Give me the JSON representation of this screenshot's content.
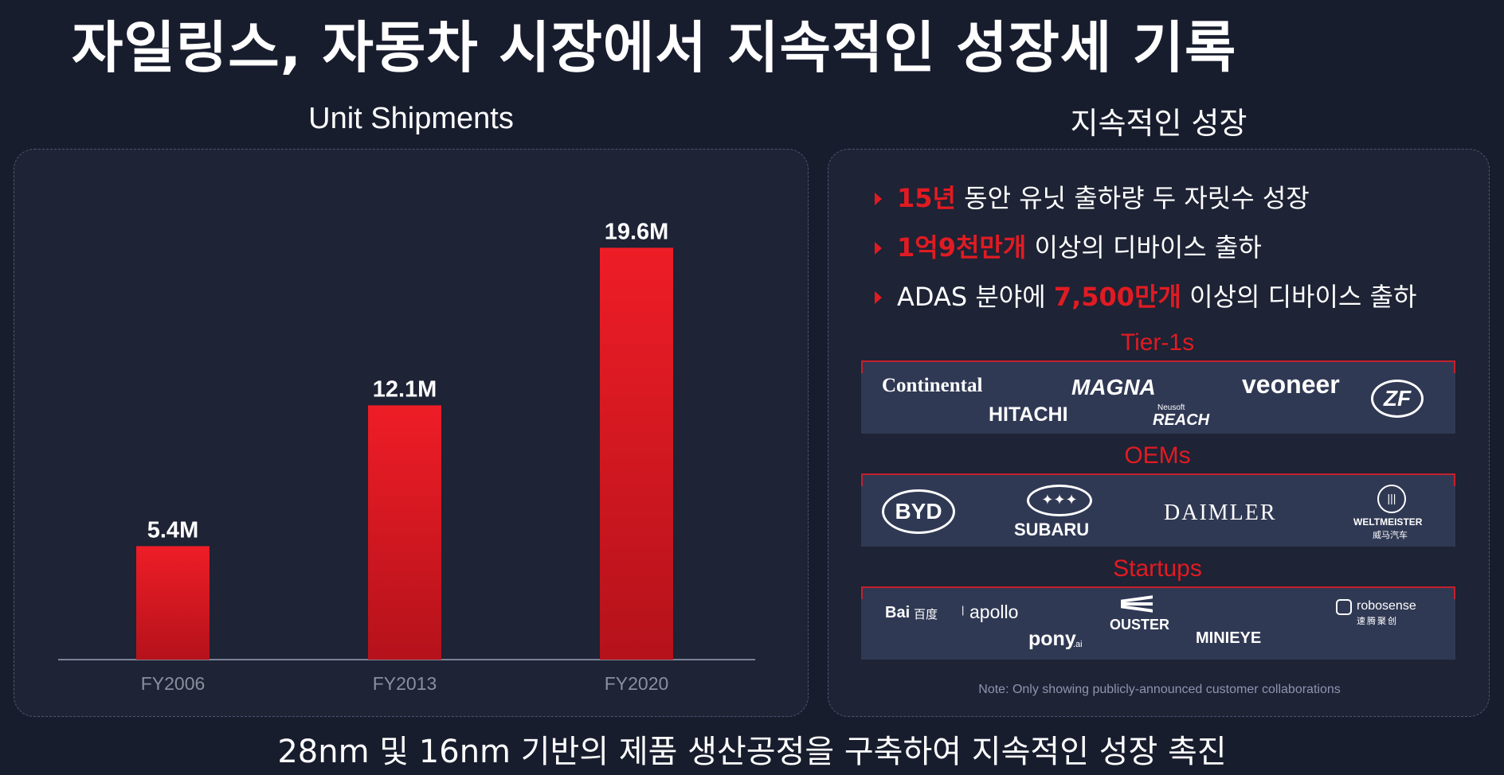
{
  "title": "자일링스, 자동차 시장에서 지속적인 성장세 기록",
  "left_panel": {
    "title": "Unit Shipments"
  },
  "right_panel": {
    "title": "지속적인 성장",
    "bullets": [
      {
        "highlight": "15년",
        "before": "",
        "after": " 동안 유닛 출하량 두 자릿수 성장"
      },
      {
        "highlight": "1억9천만개",
        "before": "",
        "after": " 이상의 디바이스 출하"
      },
      {
        "highlight": "7,500만개",
        "before": "ADAS 분야에 ",
        "after": " 이상의 디바이스 출하"
      }
    ],
    "groups": [
      {
        "label": "Tier-1s",
        "logos": [
          "Continental",
          "MAGNA",
          "veoneer",
          "ZF",
          "HITACHI",
          "Neusoft",
          "REACH"
        ]
      },
      {
        "label": "OEMs",
        "logos": [
          "BYD",
          "SUBARU",
          "DAIMLER",
          "WELTMEISTER",
          "威马汽车"
        ]
      },
      {
        "label": "Startups",
        "logos": [
          "Bai",
          "百度",
          "apollo",
          "pony",
          ".ai",
          "OUSTER",
          "MINIEYE",
          "robosense",
          "速腾聚创"
        ]
      }
    ],
    "note": "Note: Only showing publicly-announced customer collaborations"
  },
  "footer": "28nm 및 16nm 기반의 제품 생산공정을 구축하여 지속적인 성장 촉진",
  "colors": {
    "accent": "#e11b22",
    "background": "#181d2e",
    "panel": "#1e2335",
    "logo_box": "#303954"
  },
  "chart_data": {
    "type": "bar",
    "title": "Unit Shipments",
    "categories": [
      "FY2006",
      "FY2013",
      "FY2020"
    ],
    "values": [
      5.4,
      12.1,
      19.6
    ],
    "data_labels": [
      "5.4M",
      "12.1M",
      "19.6M"
    ],
    "ylim": [
      0,
      22
    ],
    "grid": false,
    "bar_color": "#e11b22"
  }
}
